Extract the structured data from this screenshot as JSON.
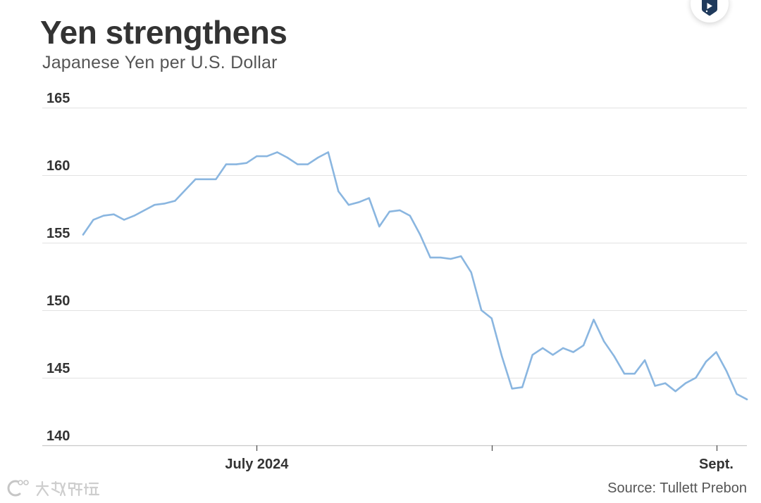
{
  "colors": {
    "series_line": "#8ab6e0",
    "badge_icon": "#1f3a5c"
  },
  "badge": {
    "icon": "bookmark-play-icon"
  },
  "watermark": {
    "text": "大数跨境",
    "icon": "brand-logo-icon"
  },
  "chart_data": {
    "type": "line",
    "title": "Yen strengthens",
    "subtitle": "Japanese Yen per U.S. Dollar",
    "source": "Source: Tullett Prebon",
    "ylim": [
      140,
      165
    ],
    "y_ticks": [
      165,
      160,
      155,
      150,
      145,
      140
    ],
    "x_ticks": [
      {
        "label": "July 2024",
        "date": "2024-07-01"
      },
      {
        "label": "",
        "date": "2024-08-01"
      },
      {
        "label": "Sept.",
        "date": "2024-09-01"
      }
    ],
    "grid": true,
    "legend": false,
    "x": [
      "2024-06-06",
      "2024-06-07",
      "2024-06-10",
      "2024-06-11",
      "2024-06-12",
      "2024-06-13",
      "2024-06-14",
      "2024-06-17",
      "2024-06-18",
      "2024-06-19",
      "2024-06-20",
      "2024-06-21",
      "2024-06-24",
      "2024-06-25",
      "2024-06-26",
      "2024-06-27",
      "2024-06-28",
      "2024-07-01",
      "2024-07-02",
      "2024-07-03",
      "2024-07-04",
      "2024-07-05",
      "2024-07-08",
      "2024-07-09",
      "2024-07-10",
      "2024-07-11",
      "2024-07-12",
      "2024-07-15",
      "2024-07-16",
      "2024-07-17",
      "2024-07-18",
      "2024-07-19",
      "2024-07-22",
      "2024-07-23",
      "2024-07-24",
      "2024-07-25",
      "2024-07-26",
      "2024-07-29",
      "2024-07-30",
      "2024-07-31",
      "2024-08-01",
      "2024-08-02",
      "2024-08-05",
      "2024-08-06",
      "2024-08-07",
      "2024-08-08",
      "2024-08-09",
      "2024-08-12",
      "2024-08-13",
      "2024-08-14",
      "2024-08-15",
      "2024-08-16",
      "2024-08-19",
      "2024-08-20",
      "2024-08-21",
      "2024-08-22",
      "2024-08-23",
      "2024-08-26",
      "2024-08-27",
      "2024-08-28",
      "2024-08-29",
      "2024-08-30",
      "2024-09-02",
      "2024-09-03",
      "2024-09-04",
      "2024-09-05"
    ],
    "series": [
      {
        "values": [
          155.6,
          156.7,
          157.0,
          157.1,
          156.7,
          157.0,
          157.4,
          157.8,
          157.9,
          158.1,
          158.9,
          159.7,
          159.7,
          159.7,
          160.8,
          160.8,
          160.9,
          161.4,
          161.4,
          161.7,
          161.3,
          160.8,
          160.8,
          161.3,
          161.7,
          158.8,
          157.8,
          158.0,
          158.3,
          156.2,
          157.3,
          157.4,
          157.0,
          155.6,
          153.9,
          153.9,
          153.8,
          154.0,
          152.8,
          150.0,
          149.4,
          146.6,
          144.2,
          144.3,
          146.7,
          147.2,
          146.7,
          147.2,
          146.9,
          147.4,
          149.3,
          147.7,
          146.6,
          145.3,
          145.3,
          146.3,
          144.4,
          144.6,
          144.0,
          144.6,
          145.0,
          146.2,
          146.9,
          145.5,
          143.8,
          143.4
        ]
      }
    ]
  }
}
